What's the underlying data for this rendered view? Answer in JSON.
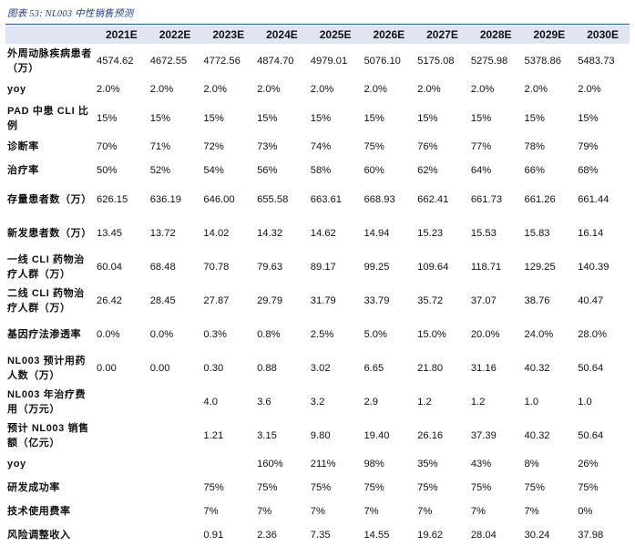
{
  "caption": "图表 53: NL003 中性销售预测",
  "columns": [
    "",
    "2021E",
    "2022E",
    "2023E",
    "2024E",
    "2025E",
    "2026E",
    "2027E",
    "2028E",
    "2029E",
    "2030E"
  ],
  "rows": [
    {
      "label": "外周动脉疾病患者（万）",
      "values": [
        "4574.62",
        "4672.55",
        "4772.56",
        "4874.70",
        "4979.01",
        "5076.10",
        "5175.08",
        "5275.98",
        "5378.86",
        "5483.73"
      ]
    },
    {
      "label": "yoy",
      "values": [
        "2.0%",
        "2.0%",
        "2.0%",
        "2.0%",
        "2.0%",
        "2.0%",
        "2.0%",
        "2.0%",
        "2.0%",
        "2.0%"
      ]
    },
    {
      "label": "PAD 中患 CLI 比例",
      "values": [
        "15%",
        "15%",
        "15%",
        "15%",
        "15%",
        "15%",
        "15%",
        "15%",
        "15%",
        "15%"
      ]
    },
    {
      "label": "诊断率",
      "values": [
        "70%",
        "71%",
        "72%",
        "73%",
        "74%",
        "75%",
        "76%",
        "77%",
        "78%",
        "79%"
      ]
    },
    {
      "label": "治疗率",
      "values": [
        "50%",
        "52%",
        "54%",
        "56%",
        "58%",
        "60%",
        "62%",
        "64%",
        "66%",
        "68%"
      ]
    },
    {
      "label": "存量患者数（万）",
      "values": [
        "626.15",
        "636.19",
        "646.00",
        "655.58",
        "663.61",
        "668.93",
        "662.41",
        "661.73",
        "661.26",
        "661.44"
      ]
    },
    {
      "label": "新发患者数（万）",
      "values": [
        "13.45",
        "13.72",
        "14.02",
        "14.32",
        "14.62",
        "14.94",
        "15.23",
        "15.53",
        "15.83",
        "16.14"
      ]
    },
    {
      "label": "一线 CLI 药物治疗人群（万）",
      "values": [
        "60.04",
        "68.48",
        "70.78",
        "79.63",
        "89.17",
        "99.25",
        "109.64",
        "118.71",
        "129.25",
        "140.39"
      ]
    },
    {
      "label": "二线 CLI 药物治疗人群（万）",
      "values": [
        "26.42",
        "28.45",
        "27.87",
        "29.79",
        "31.79",
        "33.79",
        "35.72",
        "37.07",
        "38.76",
        "40.47"
      ]
    },
    {
      "label": "基因疗法渗透率",
      "values": [
        "0.0%",
        "0.0%",
        "0.3%",
        "0.8%",
        "2.5%",
        "5.0%",
        "15.0%",
        "20.0%",
        "24.0%",
        "28.0%"
      ]
    },
    {
      "label": "NL003 预计用药人数（万）",
      "values": [
        "0.00",
        "0.00",
        "0.30",
        "0.88",
        "3.02",
        "6.65",
        "21.80",
        "31.16",
        "40.32",
        "50.64"
      ]
    },
    {
      "label": "NL003 年治疗费用（万元）",
      "values": [
        "",
        "",
        "4.0",
        "3.6",
        "3.2",
        "2.9",
        "1.2",
        "1.2",
        "1.0",
        "1.0"
      ]
    },
    {
      "label": "预计 NL003 销售额（亿元）",
      "values": [
        "",
        "",
        "1.21",
        "3.15",
        "9.80",
        "19.40",
        "26.16",
        "37.39",
        "40.32",
        "50.64"
      ]
    },
    {
      "label": "yoy",
      "values": [
        "",
        "",
        "",
        "160%",
        "211%",
        "98%",
        "35%",
        "43%",
        "8%",
        "26%"
      ]
    },
    {
      "label": "研发成功率",
      "values": [
        "",
        "",
        "75%",
        "75%",
        "75%",
        "75%",
        "75%",
        "75%",
        "75%",
        "75%"
      ]
    },
    {
      "label": "技术使用费率",
      "values": [
        "",
        "",
        "7%",
        "7%",
        "7%",
        "7%",
        "7%",
        "7%",
        "7%",
        "0%"
      ]
    },
    {
      "label": "风险调整收入",
      "values": [
        "",
        "",
        "0.91",
        "2.36",
        "7.35",
        "14.55",
        "19.62",
        "28.04",
        "30.24",
        "37.98"
      ]
    }
  ]
}
